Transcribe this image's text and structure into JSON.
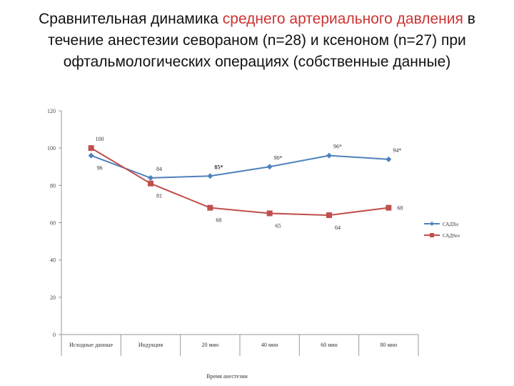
{
  "slide": {
    "title_part1": "Сравнительная динамика ",
    "title_accent1": "среднего артериального давления",
    "title_part2": " в течение анестезии севораном (n=28) и ксеноном (n=27) при офтальмологических операциях (собственные данные)"
  },
  "colors": {
    "accent_text": "#cc3333",
    "series_xe": "#4f81bd",
    "series_sev": "#c0504d"
  },
  "chart_data": {
    "type": "line",
    "title": "",
    "xlabel": "Время анестезии",
    "ylabel": "",
    "ylim": [
      0,
      120
    ],
    "yticks": [
      0,
      20,
      40,
      60,
      80,
      100,
      120
    ],
    "grid": false,
    "legend_position": "right",
    "categories": [
      "Исходные данные",
      "Индукция",
      "20 мин",
      "40 мин",
      "60 мин",
      "80 мин"
    ],
    "series": [
      {
        "name": "САДXe",
        "color": "#4f81bd",
        "marker": "diamond",
        "values": [
          96,
          84,
          85,
          90,
          96,
          94
        ],
        "labels": [
          "96",
          "84",
          "85*",
          "90*",
          "96*",
          "94*"
        ]
      },
      {
        "name": "САДSev",
        "color": "#c0504d",
        "marker": "square",
        "values": [
          100,
          81,
          68,
          65,
          64,
          68
        ],
        "labels": [
          "100",
          "81",
          "68",
          "65",
          "64",
          "68"
        ]
      }
    ]
  }
}
